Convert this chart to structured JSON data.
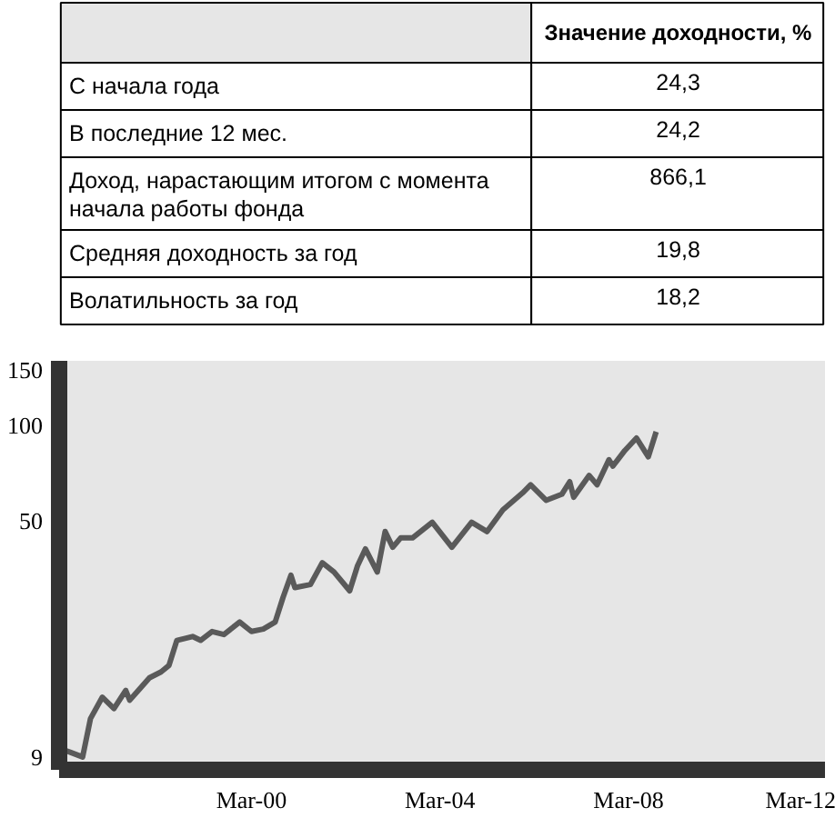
{
  "chart_data": [
    {
      "type": "other",
      "annotations": [
        "Значение доходности, %"
      ],
      "categories": [
        "С начала года",
        "В последние 12 мес.",
        "Доход, нарастающим итогом с момента начала работы фонда",
        "Средняя доходность за год",
        "Волатильность за год"
      ],
      "values": [
        24.3,
        24.2,
        866.1,
        19.8,
        18.2
      ],
      "value_labels": [
        "24,3",
        "24,2",
        "866,1",
        "19,8",
        "18,2"
      ]
    },
    {
      "type": "line",
      "log": "y",
      "color": "#5a5a5a",
      "x": [
        "1996-03",
        "1996-05",
        "1996-08",
        "1996-10",
        "1997-01",
        "1997-04",
        "1997-07",
        "1997-08",
        "1998-01",
        "1998-04",
        "1998-06",
        "1998-08",
        "1998-12",
        "1999-02",
        "1999-05",
        "1999-08",
        "1999-12",
        "2000-03",
        "2000-06",
        "2000-09",
        "2000-11",
        "2001-01",
        "2001-02",
        "2001-06",
        "2001-09",
        "2001-12",
        "2002-04",
        "2002-06",
        "2002-08",
        "2002-11",
        "2003-01",
        "2003-03",
        "2003-05",
        "2003-08",
        "2004-01",
        "2004-06",
        "2004-11",
        "2005-03",
        "2005-07",
        "2005-12",
        "2006-02",
        "2006-06",
        "2006-10",
        "2006-12",
        "2007-01",
        "2007-05",
        "2007-07",
        "2007-10",
        "2007-11",
        "2008-02",
        "2008-05",
        "2008-08",
        "2008-10"
      ],
      "values": [
        9.5,
        9.3,
        9.0,
        11.9,
        13.9,
        12.8,
        14.6,
        13.6,
        16.0,
        16.7,
        17.5,
        21.0,
        21.6,
        21.0,
        22.4,
        21.9,
        24.0,
        22.4,
        22.8,
        24.0,
        28.7,
        33.7,
        30.8,
        31.5,
        36.9,
        34.5,
        30.1,
        36.1,
        40.8,
        34.5,
        46.3,
        41.3,
        44.2,
        44.2,
        49.5,
        41.3,
        49.5,
        46.3,
        54.2,
        61.3,
        65.0,
        58.1,
        60.7,
        66.5,
        59.4,
        69.6,
        65.0,
        78.0,
        74.5,
        83.4,
        91.3,
        79.7,
        95.6
      ],
      "xlim": [
        "1996-02",
        "2012-05"
      ],
      "ylim": [
        8.2,
        160
      ],
      "xticks": [
        {
          "value": "1996-03",
          "label": null
        },
        {
          "value": "2000-03",
          "label": "Mar-00"
        },
        {
          "value": "2004-03",
          "label": "Mar-04"
        },
        {
          "value": "2008-03",
          "label": "Mar-08"
        },
        {
          "value": "2012-03",
          "label": "Mar-12"
        }
      ],
      "yticks": [
        9,
        50,
        100,
        150
      ]
    }
  ]
}
